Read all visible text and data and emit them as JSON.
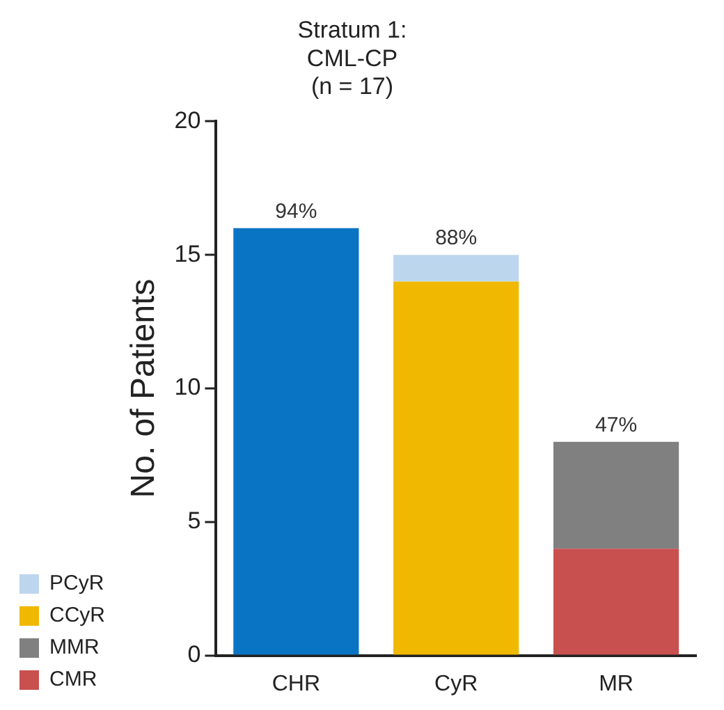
{
  "chart_data": {
    "type": "bar",
    "title": "Stratum 1:\nCML-CP\n(n = 17)",
    "ylabel": "No. of Patients",
    "categories": [
      "CHR",
      "CyR",
      "MR"
    ],
    "stacked": true,
    "series": [
      {
        "color": "#0a74c4",
        "values": [
          16,
          null,
          null
        ]
      },
      {
        "name": "CMR",
        "color": "#c8504f",
        "values": [
          null,
          null,
          4
        ]
      },
      {
        "name": "MMR",
        "color": "#808080",
        "values": [
          null,
          null,
          4
        ]
      },
      {
        "name": "CCyR",
        "color": "#f0b800",
        "values": [
          null,
          14,
          null
        ]
      },
      {
        "name": "PCyR",
        "color": "#bcd6ee",
        "values": [
          null,
          1,
          null
        ]
      }
    ],
    "annotations": [
      {
        "text": "94%",
        "x": "CHR",
        "y": 16
      },
      {
        "text": "88%",
        "x": "CyR",
        "y": 15
      },
      {
        "text": "47%",
        "x": "MR",
        "y": 8
      }
    ],
    "ylim": [
      0,
      20
    ],
    "yticks": [
      0,
      5,
      10,
      15,
      20
    ],
    "grid": false,
    "legend": "bottom left"
  }
}
